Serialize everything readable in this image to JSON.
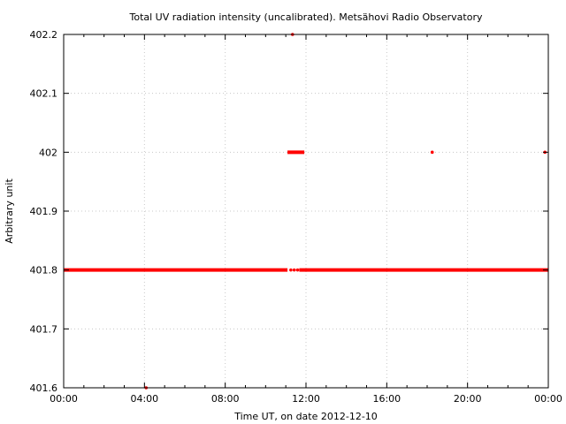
{
  "chart_data": {
    "type": "scatter",
    "title": "Total UV radiation intensity (uncalibrated). Metsähovi Radio Observatory",
    "xlabel": "Time UT, on date 2012-12-10",
    "ylabel": "Arbitrary unit",
    "xlim": [
      "00:00",
      "24:00"
    ],
    "ylim": [
      401.6,
      402.2
    ],
    "x_ticks": [
      "00:00",
      "04:00",
      "08:00",
      "12:00",
      "16:00",
      "20:00",
      "00:00"
    ],
    "y_ticks": [
      "401.6",
      "401.7",
      "401.8",
      "401.9",
      "402",
      "402.1",
      "402.2"
    ],
    "grid": true,
    "marker_color": "#ff0000",
    "series": [
      {
        "segments": [
          {
            "from": "00:00",
            "to": "11:05",
            "y": 401.8
          },
          {
            "from": "11:40",
            "to": "23:59",
            "y": 401.8
          },
          {
            "from": "11:05",
            "to": "11:55",
            "y": 402.0
          }
        ],
        "points": [
          {
            "x": "11:15",
            "y": 401.8
          },
          {
            "x": "11:25",
            "y": 401.8
          },
          {
            "x": "11:35",
            "y": 401.8
          },
          {
            "x": "11:20",
            "y": 402.2
          },
          {
            "x": "18:15",
            "y": 402.0
          },
          {
            "x": "23:50",
            "y": 402.0
          },
          {
            "x": "04:05",
            "y": 401.6
          }
        ]
      }
    ]
  }
}
